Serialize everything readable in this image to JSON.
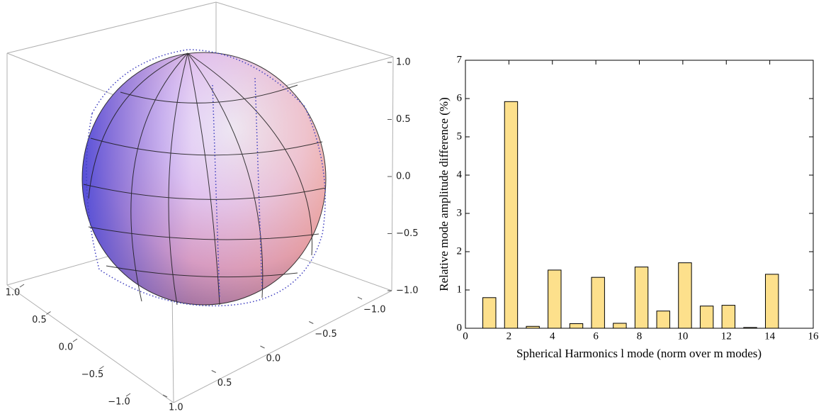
{
  "chart_data": [
    {
      "type": "surface3d",
      "xlim": [
        -1,
        1
      ],
      "xticks": [
        {
          "value": -1,
          "label": "−1.0"
        },
        {
          "value": -0.5,
          "label": "−0.5"
        },
        {
          "value": 0,
          "label": "0.0"
        },
        {
          "value": 0.5,
          "label": "0.5"
        },
        {
          "value": 1,
          "label": "1.0"
        }
      ],
      "ylim": [
        -1,
        1
      ],
      "yticks": [
        {
          "value": -1,
          "label": "−1.0"
        },
        {
          "value": -0.5,
          "label": "−0.5"
        },
        {
          "value": 0,
          "label": "0.0"
        },
        {
          "value": 0.5,
          "label": "0.5"
        },
        {
          "value": 1,
          "label": "1.0"
        }
      ],
      "zlim": [
        -1,
        1
      ],
      "zticks": [
        {
          "value": -1,
          "label": "−1.0"
        },
        {
          "value": -0.5,
          "label": "−0.5"
        },
        {
          "value": 0,
          "label": "0.0"
        },
        {
          "value": 0.5,
          "label": "0.5"
        },
        {
          "value": 1,
          "label": "1.0"
        }
      ]
    },
    {
      "type": "bar",
      "xlabel": "Spherical Harmonics l mode (norm over m modes)",
      "ylabel": "Relative mode amplitude difference (%)",
      "x": [
        1,
        2,
        3,
        4,
        5,
        6,
        7,
        8,
        9,
        10,
        11,
        12,
        13,
        14
      ],
      "values": [
        0.8,
        5.92,
        0.05,
        1.52,
        0.12,
        1.33,
        0.13,
        1.6,
        0.45,
        1.71,
        0.58,
        0.6,
        0.02,
        1.41
      ],
      "color": "#fde08c",
      "xlim": [
        0,
        16
      ],
      "xticks": [
        0,
        2,
        4,
        6,
        8,
        10,
        12,
        14,
        16
      ],
      "ylim": [
        0,
        7
      ],
      "yticks": [
        0,
        1,
        2,
        3,
        4,
        5,
        6,
        7
      ]
    }
  ]
}
